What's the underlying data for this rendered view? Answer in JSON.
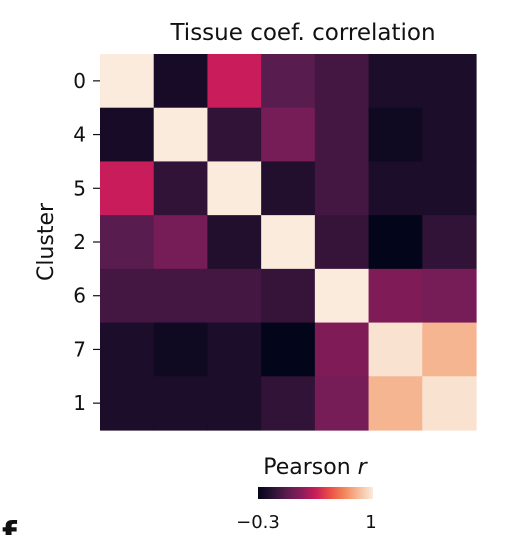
{
  "panel_letter": "f",
  "chart_data": {
    "type": "heatmap",
    "title": "Tissue coef. correlation",
    "ylabel": "Cluster",
    "xlabel": "",
    "row_labels": [
      "0",
      "4",
      "5",
      "2",
      "6",
      "7",
      "1"
    ],
    "values": [
      [
        1.0,
        -0.22,
        0.35,
        0.02,
        -0.05,
        -0.2,
        -0.2
      ],
      [
        -0.22,
        1.0,
        -0.12,
        0.12,
        -0.05,
        -0.25,
        -0.2
      ],
      [
        0.35,
        -0.12,
        1.0,
        -0.18,
        -0.05,
        -0.2,
        -0.2
      ],
      [
        0.02,
        0.12,
        -0.18,
        1.0,
        -0.1,
        -0.3,
        -0.12
      ],
      [
        -0.05,
        -0.05,
        -0.05,
        -0.1,
        1.0,
        0.15,
        0.12
      ],
      [
        -0.2,
        -0.25,
        -0.2,
        -0.3,
        0.15,
        0.97,
        0.82
      ],
      [
        -0.2,
        -0.2,
        -0.2,
        -0.12,
        0.12,
        0.82,
        0.97
      ]
    ],
    "colorbar": {
      "label_prefix": "Pearson ",
      "label_variable": "r",
      "min": -0.3,
      "max": 1,
      "min_label": "−0.3",
      "max_label": "1",
      "colormap": "rocket",
      "stops": [
        "#03051a",
        "#2b1234",
        "#5a1c4f",
        "#8a1c5b",
        "#c81d5a",
        "#ea4e46",
        "#f4865b",
        "#f6bb98",
        "#faebdd"
      ]
    },
    "grid": false,
    "legend": "colorbar-bottom"
  }
}
